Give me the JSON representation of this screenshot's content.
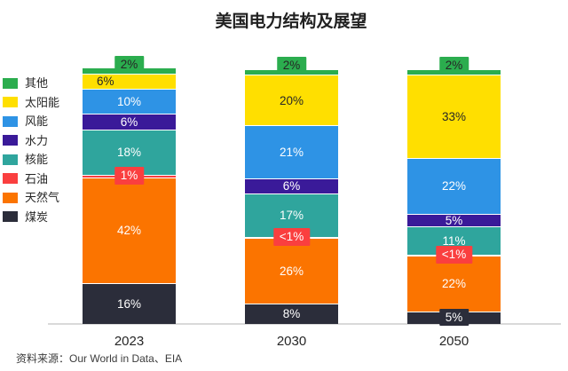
{
  "title": "美国电力结构及展望",
  "source_note": "资料来源：Our World in Data、EIA",
  "colors": {
    "other": "#2BAD4E",
    "solar": "#FFDF00",
    "wind": "#2E93E5",
    "hydro": "#3A1A99",
    "nuclear": "#2FA59D",
    "oil": "#FA3F3F",
    "gas": "#FB7400",
    "coal": "#2B2D3A",
    "axis": "#D9D9D9",
    "dark_text": "#262626",
    "white_text": "#FFFFFF"
  },
  "legend": {
    "position": "left",
    "items": [
      {
        "key": "other",
        "label": "其他"
      },
      {
        "key": "solar",
        "label": "太阳能"
      },
      {
        "key": "wind",
        "label": "风能"
      },
      {
        "key": "hydro",
        "label": "水力"
      },
      {
        "key": "nuclear",
        "label": "核能"
      },
      {
        "key": "oil",
        "label": "石油"
      },
      {
        "key": "gas",
        "label": "天然气"
      },
      {
        "key": "coal",
        "label": "煤炭"
      }
    ]
  },
  "chart_data": {
    "type": "bar",
    "stacked": true,
    "unit": "%",
    "grid": false,
    "categories": [
      "2023",
      "2030",
      "2050"
    ],
    "series": [
      {
        "key": "other",
        "name": "其他",
        "values": [
          2,
          2,
          2
        ],
        "labels": [
          "2%",
          "2%",
          "2%"
        ],
        "label_color": "#262626",
        "boxed": [
          true,
          true,
          true
        ],
        "box_dy": -7
      },
      {
        "key": "solar",
        "name": "太阳能",
        "values": [
          6,
          20,
          33
        ],
        "labels": [
          "6%",
          "20%",
          "33%"
        ],
        "label_color": "#262626",
        "boxed": [
          false,
          false,
          false
        ],
        "align": [
          "left",
          "center",
          "center"
        ]
      },
      {
        "key": "wind",
        "name": "风能",
        "values": [
          10,
          21,
          22
        ],
        "labels": [
          "10%",
          "21%",
          "22%"
        ],
        "label_color": "#FFFFFF",
        "boxed": [
          false,
          false,
          false
        ]
      },
      {
        "key": "hydro",
        "name": "水力",
        "values": [
          6,
          6,
          5
        ],
        "labels": [
          "6%",
          "6%",
          "5%"
        ],
        "label_color": "#FFFFFF",
        "boxed": [
          false,
          false,
          false
        ]
      },
      {
        "key": "nuclear",
        "name": "核能",
        "values": [
          18,
          17,
          11
        ],
        "labels": [
          "18%",
          "17%",
          "11%"
        ],
        "label_color": "#FFFFFF",
        "boxed": [
          false,
          false,
          false
        ]
      },
      {
        "key": "oil",
        "name": "石油",
        "values": [
          1,
          0.5,
          0.5
        ],
        "labels": [
          "1%",
          "<1%",
          "<1%"
        ],
        "label_color": "#FFFFFF",
        "boxed": [
          true,
          true,
          true
        ]
      },
      {
        "key": "gas",
        "name": "天然气",
        "values": [
          42,
          26,
          22
        ],
        "labels": [
          "42%",
          "26%",
          "22%"
        ],
        "label_color": "#FFFFFF",
        "boxed": [
          false,
          false,
          false
        ]
      },
      {
        "key": "coal",
        "name": "煤炭",
        "values": [
          16,
          8,
          5
        ],
        "labels": [
          "16%",
          "8%",
          "5%"
        ],
        "label_color": "#FFFFFF",
        "boxed": [
          false,
          false,
          true
        ]
      }
    ]
  }
}
